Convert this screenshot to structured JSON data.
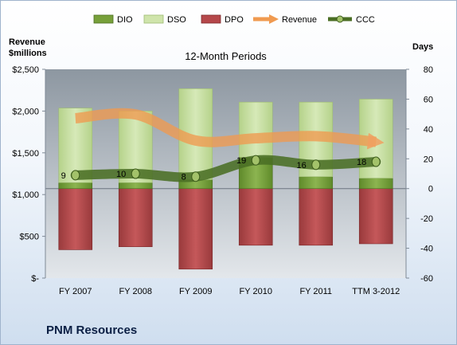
{
  "company": "PNM Resources",
  "chart_data": {
    "type": "bar",
    "title": "12-Month Periods",
    "categories": [
      "FY 2007",
      "FY 2008",
      "FY 2009",
      "FY 2010",
      "FY 2011",
      "TTM 3-2012"
    ],
    "left_axis": {
      "label_line1": "Revenue",
      "label_line2": "$millions",
      "ylim": [
        0,
        2500
      ],
      "ticks": [
        0,
        500,
        1000,
        1500,
        2000,
        2500
      ],
      "tick_labels": [
        "$-",
        "$500",
        "$1,000",
        "$1,500",
        "$2,000",
        "$2,500"
      ]
    },
    "right_axis": {
      "label": "Days",
      "ylim": [
        -60,
        80
      ],
      "ticks": [
        -60,
        -40,
        -20,
        0,
        20,
        40,
        60,
        80
      ],
      "tick_labels": [
        "-60",
        "-40",
        "-20",
        "0",
        "20",
        "40",
        "60",
        "80"
      ]
    },
    "series": [
      {
        "name": "DIO",
        "axis": "right",
        "kind": "stacked-bar-positive",
        "color": "#77a03a",
        "values": [
          4,
          4,
          6,
          21,
          8,
          7
        ]
      },
      {
        "name": "DSO",
        "axis": "right",
        "kind": "stacked-bar-positive",
        "color": "#c6dea0",
        "values": [
          50,
          48,
          61,
          37,
          50,
          53
        ]
      },
      {
        "name": "DPO",
        "axis": "right",
        "kind": "bar-negative",
        "color": "#b5474a",
        "values": [
          -41,
          -39,
          -54,
          -38,
          -38,
          -37
        ]
      },
      {
        "name": "Revenue",
        "axis": "left",
        "kind": "line",
        "color": "#f4a460",
        "values": [
          1914,
          1960,
          1647,
          1674,
          1700,
          1631
        ]
      },
      {
        "name": "CCC",
        "axis": "right",
        "kind": "line",
        "color": "#4f7a28",
        "values": [
          9,
          10,
          8,
          19,
          16,
          18
        ],
        "labels": [
          "9",
          "10",
          "8",
          "19",
          "16",
          "18"
        ]
      }
    ],
    "legend_position": "top",
    "grid": false
  }
}
